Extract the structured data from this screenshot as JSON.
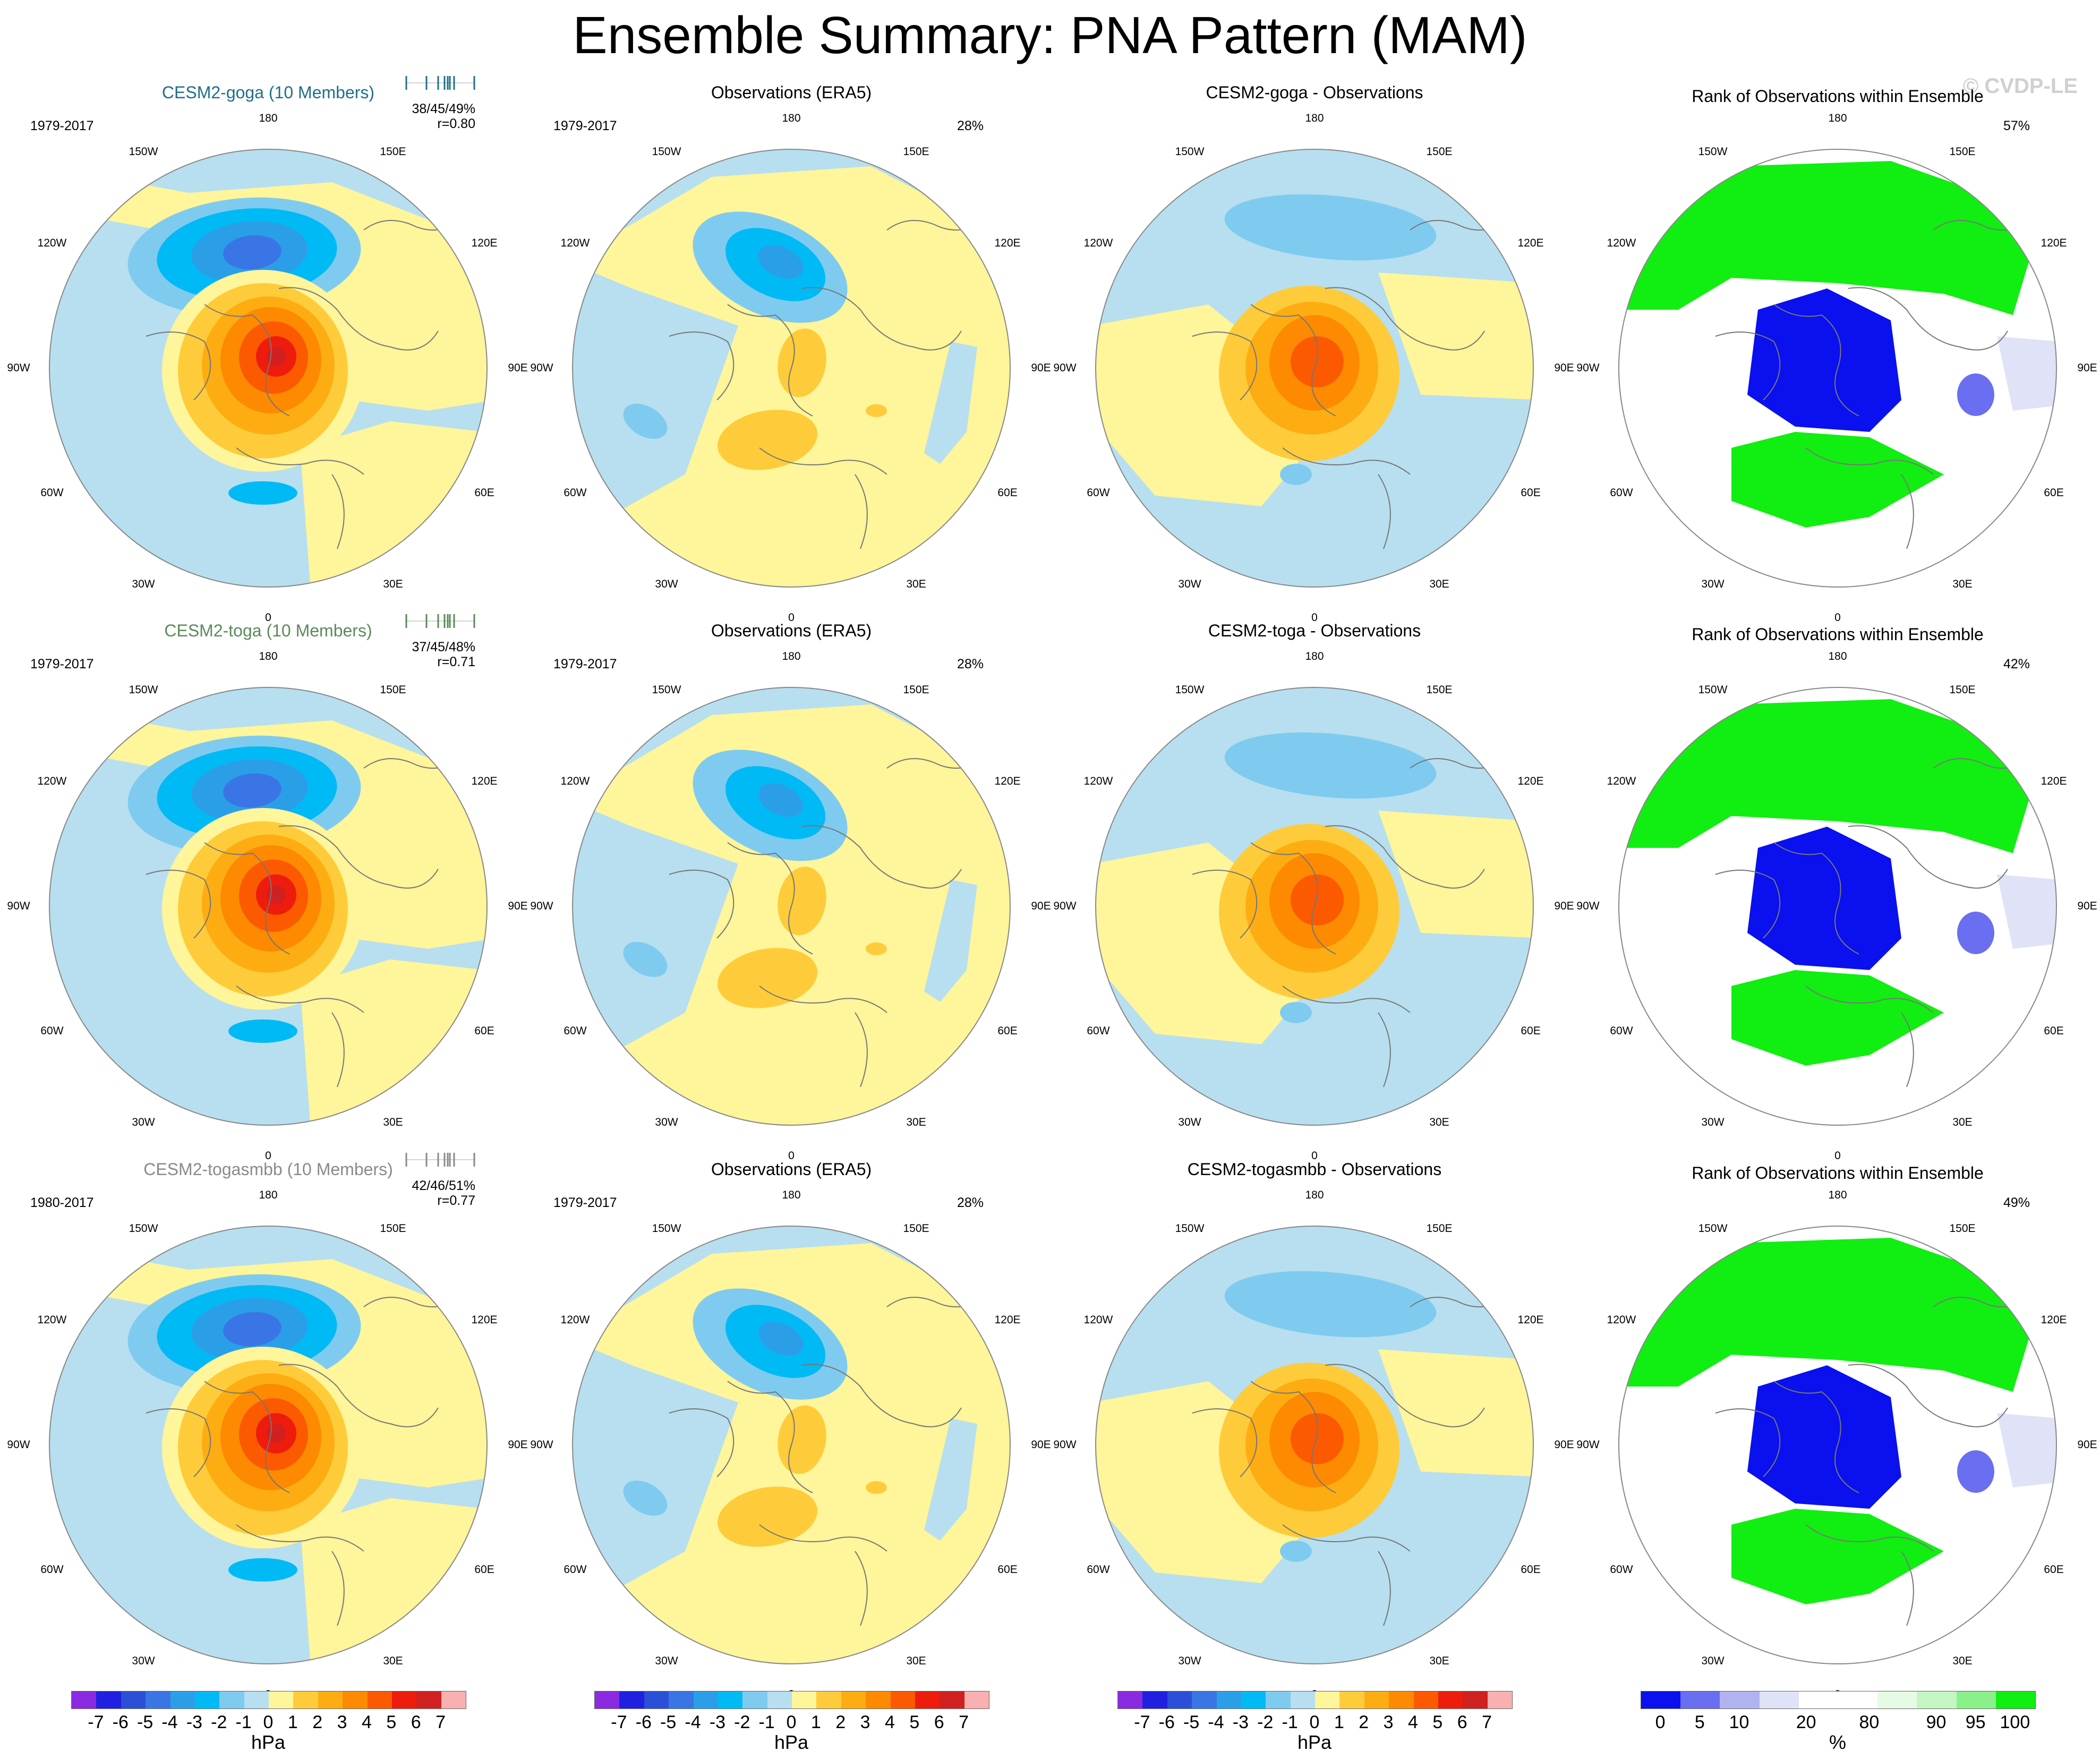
{
  "title": "Ensemble Summary: PNA Pattern (MAM)",
  "copyright": "© CVDP-LE",
  "colors": {
    "model_goga": "#1f7088",
    "model_toga": "#5b8a5b",
    "model_togasmbb": "#8a8a8a",
    "ocean_background": "#b7dff0",
    "land_lines": "#777777"
  },
  "rows": [
    {
      "panels": [
        {
          "kind": "model",
          "title": "CESM2-goga (10 Members)",
          "title_color": "#1f7088",
          "period": "1979-2017",
          "stats": "38/45/49%",
          "corr": "r=0.80",
          "pct": ""
        },
        {
          "kind": "obs",
          "title": "Observations (ERA5)",
          "period": "1979-2017",
          "pct": "28%"
        },
        {
          "kind": "diff",
          "title": "CESM2-goga - Observations"
        },
        {
          "kind": "rank",
          "title": "Rank of Observations within Ensemble",
          "pct": "57%"
        }
      ]
    },
    {
      "panels": [
        {
          "kind": "model",
          "title": "CESM2-toga (10 Members)",
          "title_color": "#5b8a5b",
          "period": "1979-2017",
          "stats": "37/45/48%",
          "corr": "r=0.71",
          "pct": ""
        },
        {
          "kind": "obs",
          "title": "Observations (ERA5)",
          "period": "1979-2017",
          "pct": "28%"
        },
        {
          "kind": "diff",
          "title": "CESM2-toga - Observations"
        },
        {
          "kind": "rank",
          "title": "Rank of Observations within Ensemble",
          "pct": "42%"
        }
      ]
    },
    {
      "panels": [
        {
          "kind": "model",
          "title": "CESM2-togasmbb (10 Members)",
          "title_color": "#8a8a8a",
          "period": "1980-2017",
          "stats": "42/46/51%",
          "corr": "r=0.77",
          "pct": ""
        },
        {
          "kind": "obs",
          "title": "Observations (ERA5)",
          "period": "1979-2017",
          "pct": "28%"
        },
        {
          "kind": "diff",
          "title": "CESM2-togasmbb - Observations"
        },
        {
          "kind": "rank",
          "title": "Rank of Observations within Ensemble",
          "pct": "49%"
        }
      ]
    }
  ],
  "longitude_labels": [
    "180",
    "150E",
    "120E",
    "90E",
    "60E",
    "30E",
    "0",
    "30W",
    "60W",
    "90W",
    "120W",
    "150W"
  ],
  "colorbar_hpa": {
    "unit": "hPa",
    "ticks": [
      "-7",
      "-6",
      "-5",
      "-4",
      "-3",
      "-2",
      "-1",
      "0",
      "1",
      "2",
      "3",
      "4",
      "5",
      "6",
      "7"
    ],
    "colors": [
      "#8a2be2",
      "#2020e0",
      "#2c4fd8",
      "#3a75e6",
      "#2a9fe8",
      "#00baf5",
      "#7fcbef",
      "#b7dff0",
      "#fff59a",
      "#fecc3a",
      "#fdad12",
      "#fd8a00",
      "#fb5a00",
      "#ee1c0c",
      "#d02020",
      "#f8b0b0"
    ]
  },
  "colorbar_rank": {
    "unit": "%",
    "ticks": [
      "0",
      "5",
      "10",
      "20",
      "80",
      "90",
      "95",
      "100"
    ],
    "colors": [
      "#0a10ee",
      "#6a6ef0",
      "#b0b3f0",
      "#e0e2f7",
      "#ffffff",
      "#ffffff",
      "#e6fbe6",
      "#c4f6c4",
      "#8af08a",
      "#11ee11"
    ]
  }
}
